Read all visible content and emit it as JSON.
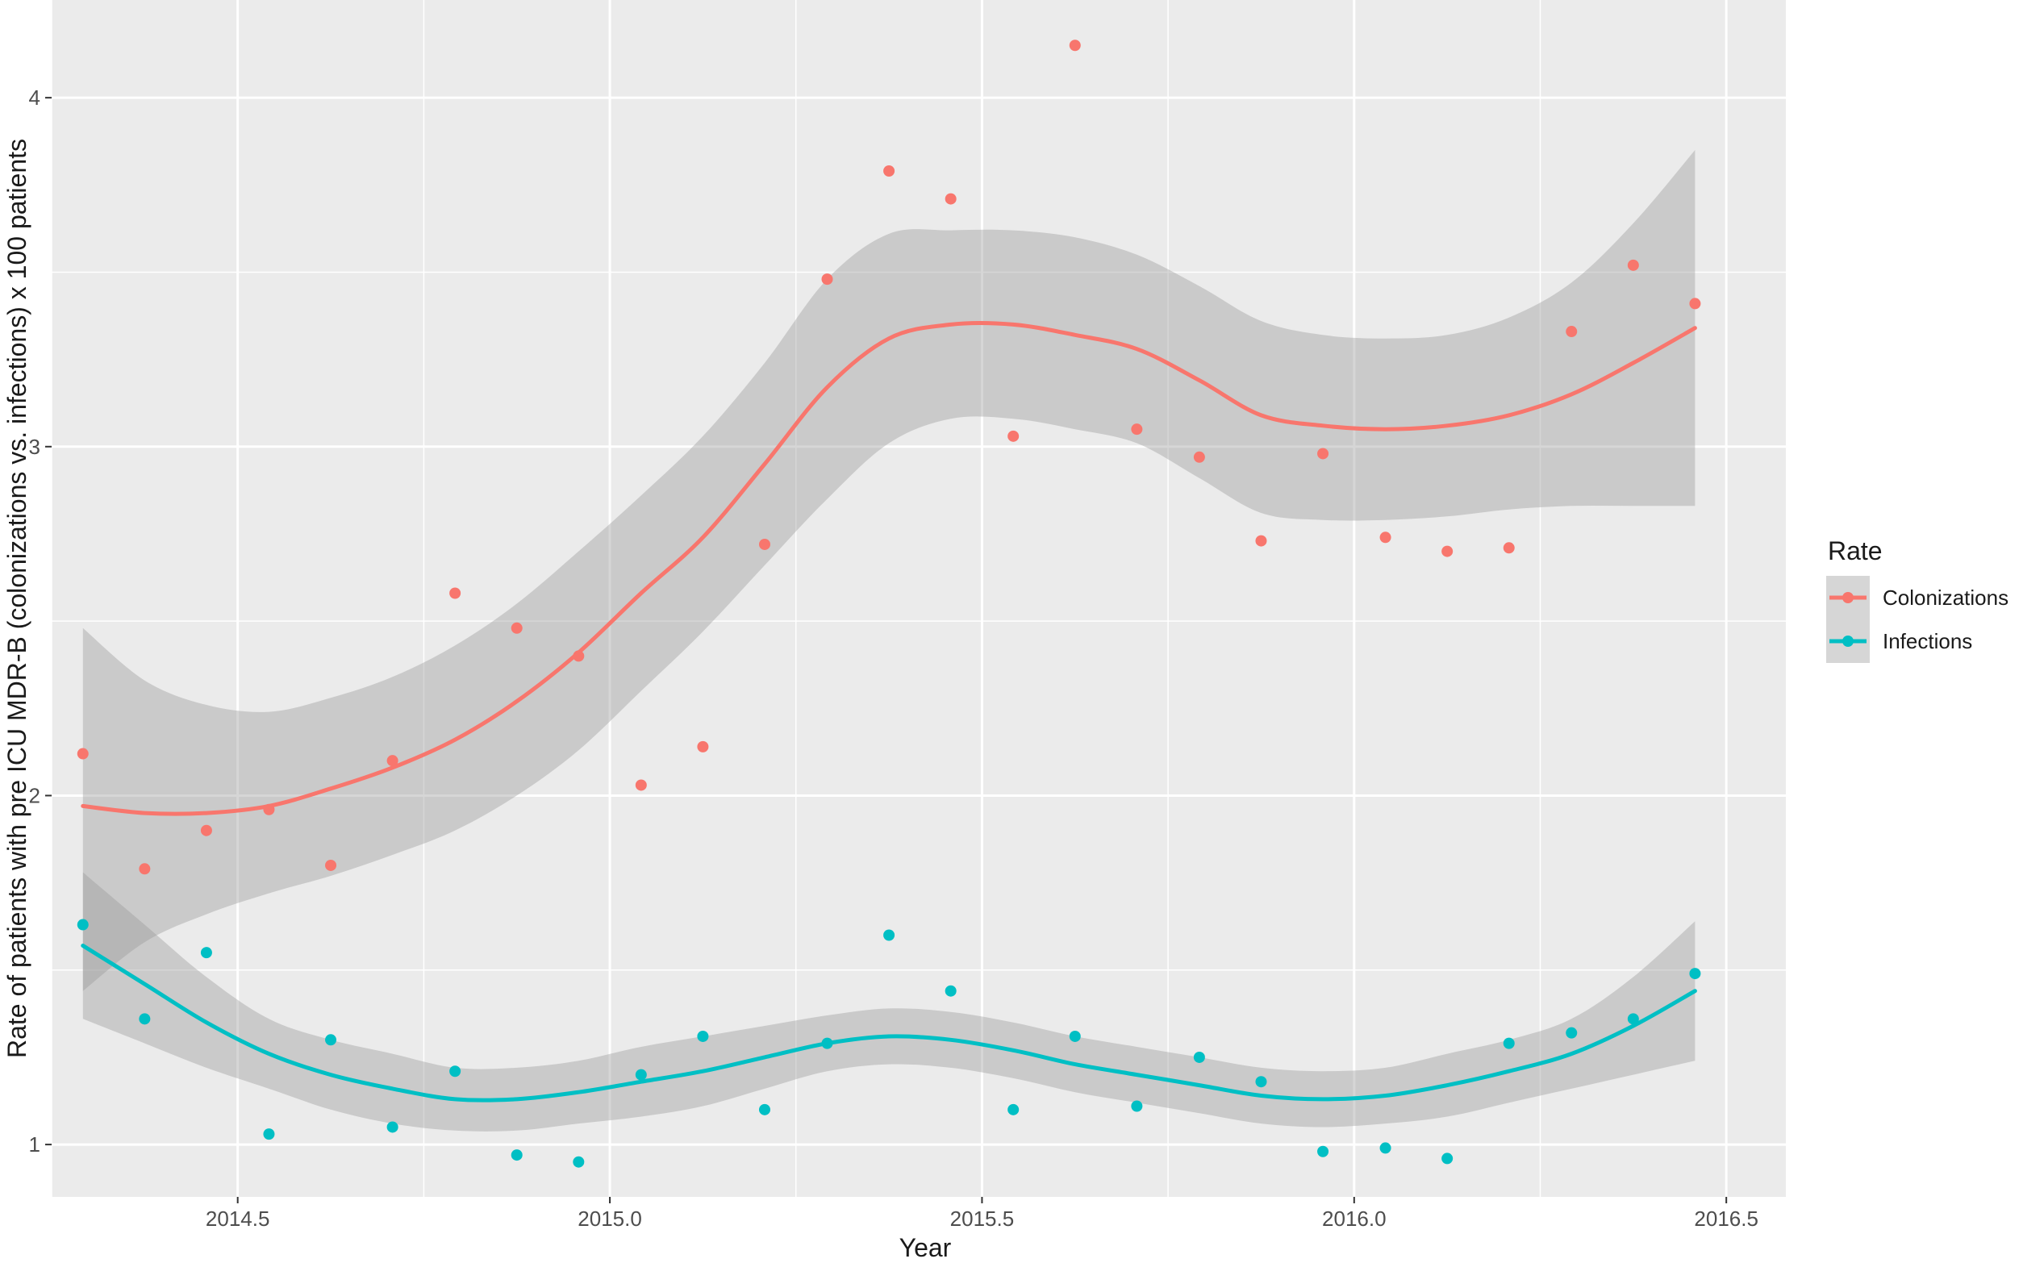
{
  "chart_data": {
    "type": "scatter",
    "title": "",
    "xlabel": "Year",
    "ylabel": "Rate of patients with pre ICU MDR-B (colonizations vs. infections) x 100 patients",
    "xlim": [
      2014.25,
      2016.58
    ],
    "ylim": [
      0.85,
      4.28
    ],
    "x_ticks": [
      2014.5,
      2015.0,
      2015.5,
      2016.0,
      2016.5
    ],
    "x_tick_labels": [
      "2014.5",
      "2015.0",
      "2015.5",
      "2016.0",
      "2016.5"
    ],
    "y_ticks": [
      1,
      2,
      3,
      4
    ],
    "y_tick_labels": [
      "1",
      "2",
      "3",
      "4"
    ],
    "grid": true,
    "legend": {
      "title": "Rate",
      "position": "right"
    },
    "series": [
      {
        "name": "Colonizations",
        "color": "#F8766D",
        "points": [
          {
            "x": 2014.292,
            "y": 2.12
          },
          {
            "x": 2014.375,
            "y": 1.79
          },
          {
            "x": 2014.458,
            "y": 1.9
          },
          {
            "x": 2014.542,
            "y": 1.96
          },
          {
            "x": 2014.625,
            "y": 1.8
          },
          {
            "x": 2014.708,
            "y": 2.1
          },
          {
            "x": 2014.792,
            "y": 2.58
          },
          {
            "x": 2014.875,
            "y": 2.48
          },
          {
            "x": 2014.958,
            "y": 2.4
          },
          {
            "x": 2015.042,
            "y": 2.03
          },
          {
            "x": 2015.125,
            "y": 2.14
          },
          {
            "x": 2015.208,
            "y": 2.72
          },
          {
            "x": 2015.292,
            "y": 3.48
          },
          {
            "x": 2015.375,
            "y": 3.79
          },
          {
            "x": 2015.458,
            "y": 3.71
          },
          {
            "x": 2015.542,
            "y": 3.03
          },
          {
            "x": 2015.625,
            "y": 4.15
          },
          {
            "x": 2015.708,
            "y": 3.05
          },
          {
            "x": 2015.792,
            "y": 2.97
          },
          {
            "x": 2015.875,
            "y": 2.73
          },
          {
            "x": 2015.958,
            "y": 2.98
          },
          {
            "x": 2016.042,
            "y": 2.74
          },
          {
            "x": 2016.125,
            "y": 2.7
          },
          {
            "x": 2016.208,
            "y": 2.71
          },
          {
            "x": 2016.292,
            "y": 3.33
          },
          {
            "x": 2016.375,
            "y": 3.52
          },
          {
            "x": 2016.458,
            "y": 3.41
          }
        ],
        "smooth": {
          "x": [
            2014.292,
            2014.375,
            2014.458,
            2014.542,
            2014.625,
            2014.708,
            2014.792,
            2014.875,
            2014.958,
            2015.042,
            2015.125,
            2015.208,
            2015.292,
            2015.375,
            2015.458,
            2015.542,
            2015.625,
            2015.708,
            2015.792,
            2015.875,
            2015.958,
            2016.042,
            2016.125,
            2016.208,
            2016.292,
            2016.375,
            2016.458
          ],
          "y": [
            1.97,
            1.95,
            1.95,
            1.97,
            2.02,
            2.08,
            2.16,
            2.27,
            2.41,
            2.58,
            2.74,
            2.95,
            3.17,
            3.31,
            3.35,
            3.35,
            3.32,
            3.28,
            3.19,
            3.09,
            3.06,
            3.05,
            3.06,
            3.09,
            3.15,
            3.24,
            3.34
          ],
          "lower": [
            1.44,
            1.58,
            1.66,
            1.72,
            1.77,
            1.83,
            1.9,
            2.0,
            2.13,
            2.3,
            2.47,
            2.66,
            2.85,
            3.01,
            3.08,
            3.08,
            3.05,
            3.01,
            2.91,
            2.81,
            2.79,
            2.79,
            2.8,
            2.82,
            2.83,
            2.83,
            2.83
          ],
          "upper": [
            2.48,
            2.33,
            2.26,
            2.24,
            2.28,
            2.34,
            2.43,
            2.55,
            2.7,
            2.86,
            3.03,
            3.24,
            3.48,
            3.61,
            3.62,
            3.62,
            3.6,
            3.55,
            3.46,
            3.36,
            3.32,
            3.31,
            3.32,
            3.37,
            3.47,
            3.64,
            3.85
          ]
        }
      },
      {
        "name": "Infections",
        "color": "#00BFC4",
        "points": [
          {
            "x": 2014.292,
            "y": 1.63
          },
          {
            "x": 2014.375,
            "y": 1.36
          },
          {
            "x": 2014.458,
            "y": 1.55
          },
          {
            "x": 2014.542,
            "y": 1.03
          },
          {
            "x": 2014.625,
            "y": 1.3
          },
          {
            "x": 2014.708,
            "y": 1.05
          },
          {
            "x": 2014.792,
            "y": 1.21
          },
          {
            "x": 2014.875,
            "y": 0.97
          },
          {
            "x": 2014.958,
            "y": 0.95
          },
          {
            "x": 2015.042,
            "y": 1.2
          },
          {
            "x": 2015.125,
            "y": 1.31
          },
          {
            "x": 2015.208,
            "y": 1.1
          },
          {
            "x": 2015.292,
            "y": 1.29
          },
          {
            "x": 2015.375,
            "y": 1.6
          },
          {
            "x": 2015.458,
            "y": 1.44
          },
          {
            "x": 2015.542,
            "y": 1.1
          },
          {
            "x": 2015.625,
            "y": 1.31
          },
          {
            "x": 2015.708,
            "y": 1.11
          },
          {
            "x": 2015.792,
            "y": 1.25
          },
          {
            "x": 2015.875,
            "y": 1.18
          },
          {
            "x": 2015.958,
            "y": 0.98
          },
          {
            "x": 2016.042,
            "y": 0.99
          },
          {
            "x": 2016.125,
            "y": 0.96
          },
          {
            "x": 2016.208,
            "y": 1.29
          },
          {
            "x": 2016.292,
            "y": 1.32
          },
          {
            "x": 2016.375,
            "y": 1.36
          },
          {
            "x": 2016.458,
            "y": 1.49
          }
        ],
        "smooth": {
          "x": [
            2014.292,
            2014.375,
            2014.458,
            2014.542,
            2014.625,
            2014.708,
            2014.792,
            2014.875,
            2014.958,
            2015.042,
            2015.125,
            2015.208,
            2015.292,
            2015.375,
            2015.458,
            2015.542,
            2015.625,
            2015.708,
            2015.792,
            2015.875,
            2015.958,
            2016.042,
            2016.125,
            2016.208,
            2016.292,
            2016.375,
            2016.458
          ],
          "y": [
            1.57,
            1.46,
            1.35,
            1.26,
            1.2,
            1.16,
            1.13,
            1.13,
            1.15,
            1.18,
            1.21,
            1.25,
            1.29,
            1.31,
            1.3,
            1.27,
            1.23,
            1.2,
            1.17,
            1.14,
            1.13,
            1.14,
            1.17,
            1.21,
            1.26,
            1.34,
            1.44
          ],
          "lower": [
            1.36,
            1.29,
            1.22,
            1.16,
            1.1,
            1.06,
            1.04,
            1.04,
            1.06,
            1.08,
            1.11,
            1.16,
            1.21,
            1.23,
            1.22,
            1.19,
            1.15,
            1.12,
            1.09,
            1.06,
            1.05,
            1.06,
            1.08,
            1.12,
            1.16,
            1.2,
            1.24
          ],
          "upper": [
            1.78,
            1.63,
            1.48,
            1.36,
            1.3,
            1.26,
            1.22,
            1.22,
            1.24,
            1.28,
            1.31,
            1.34,
            1.37,
            1.39,
            1.38,
            1.35,
            1.31,
            1.28,
            1.25,
            1.22,
            1.21,
            1.22,
            1.26,
            1.3,
            1.36,
            1.48,
            1.64
          ]
        }
      }
    ]
  }
}
